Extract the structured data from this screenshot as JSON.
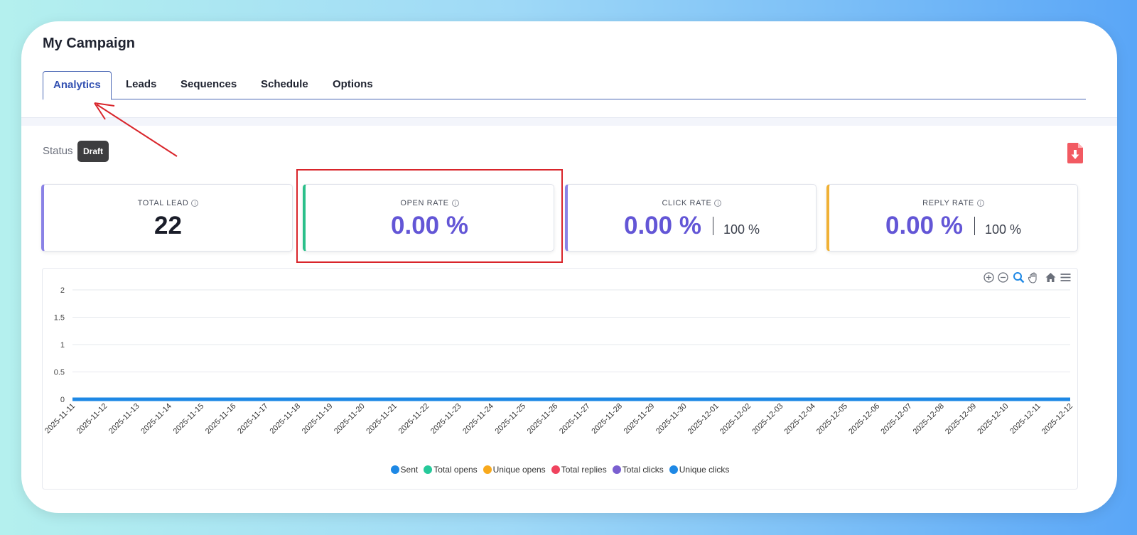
{
  "title": "My Campaign",
  "tabs": [
    {
      "label": "Analytics",
      "active": true
    },
    {
      "label": "Leads"
    },
    {
      "label": "Sequences"
    },
    {
      "label": "Schedule"
    },
    {
      "label": "Options"
    }
  ],
  "status": {
    "label": "Status",
    "value": "Draft"
  },
  "stats": [
    {
      "label": "TOTAL LEAD",
      "value": "22",
      "color": "#1a1d29",
      "accent": "#8a82e6"
    },
    {
      "label": "OPEN RATE",
      "value": "0.00 %",
      "color": "#6356d6",
      "accent": "#2bbf8a"
    },
    {
      "label": "CLICK RATE",
      "value": "0.00 %",
      "sub": "100 %",
      "color": "#6356d6",
      "accent": "#8a82e6"
    },
    {
      "label": "REPLY RATE",
      "value": "0.00 %",
      "sub": "100 %",
      "color": "#6356d6",
      "accent": "#f0b135"
    }
  ],
  "chart_data": {
    "type": "line",
    "categories": [
      "2025-11-11",
      "2025-11-12",
      "2025-11-13",
      "2025-11-14",
      "2025-11-15",
      "2025-11-16",
      "2025-11-17",
      "2025-11-18",
      "2025-11-19",
      "2025-11-20",
      "2025-11-21",
      "2025-11-22",
      "2025-11-23",
      "2025-11-24",
      "2025-11-25",
      "2025-11-26",
      "2025-11-27",
      "2025-11-28",
      "2025-11-29",
      "2025-11-30",
      "2025-12-01",
      "2025-12-02",
      "2025-12-03",
      "2025-12-04",
      "2025-12-05",
      "2025-12-06",
      "2025-12-07",
      "2025-12-08",
      "2025-12-09",
      "2025-12-10",
      "2025-12-11",
      "2025-12-12"
    ],
    "yticks": [
      "0",
      "0.5",
      "1",
      "1.5",
      "2"
    ],
    "ylim": [
      0,
      2
    ],
    "grid": true,
    "legend_position": "bottom",
    "series": [
      {
        "name": "Sent",
        "color": "#1e88e5",
        "values": [
          0,
          0,
          0,
          0,
          0,
          0,
          0,
          0,
          0,
          0,
          0,
          0,
          0,
          0,
          0,
          0,
          0,
          0,
          0,
          0,
          0,
          0,
          0,
          0,
          0,
          0,
          0,
          0,
          0,
          0,
          0,
          0
        ]
      },
      {
        "name": "Total opens",
        "color": "#26c99a",
        "values": [
          0,
          0,
          0,
          0,
          0,
          0,
          0,
          0,
          0,
          0,
          0,
          0,
          0,
          0,
          0,
          0,
          0,
          0,
          0,
          0,
          0,
          0,
          0,
          0,
          0,
          0,
          0,
          0,
          0,
          0,
          0,
          0
        ]
      },
      {
        "name": "Unique opens",
        "color": "#f8a91c",
        "values": [
          0,
          0,
          0,
          0,
          0,
          0,
          0,
          0,
          0,
          0,
          0,
          0,
          0,
          0,
          0,
          0,
          0,
          0,
          0,
          0,
          0,
          0,
          0,
          0,
          0,
          0,
          0,
          0,
          0,
          0,
          0,
          0
        ]
      },
      {
        "name": "Total replies",
        "color": "#f0435e",
        "values": [
          0,
          0,
          0,
          0,
          0,
          0,
          0,
          0,
          0,
          0,
          0,
          0,
          0,
          0,
          0,
          0,
          0,
          0,
          0,
          0,
          0,
          0,
          0,
          0,
          0,
          0,
          0,
          0,
          0,
          0,
          0,
          0
        ]
      },
      {
        "name": "Total clicks",
        "color": "#7a5fd0",
        "values": [
          0,
          0,
          0,
          0,
          0,
          0,
          0,
          0,
          0,
          0,
          0,
          0,
          0,
          0,
          0,
          0,
          0,
          0,
          0,
          0,
          0,
          0,
          0,
          0,
          0,
          0,
          0,
          0,
          0,
          0,
          0,
          0
        ]
      },
      {
        "name": "Unique clicks",
        "color": "#1e88e5",
        "values": [
          0,
          0,
          0,
          0,
          0,
          0,
          0,
          0,
          0,
          0,
          0,
          0,
          0,
          0,
          0,
          0,
          0,
          0,
          0,
          0,
          0,
          0,
          0,
          0,
          0,
          0,
          0,
          0,
          0,
          0,
          0,
          0
        ]
      }
    ]
  },
  "toolbar_icons": [
    "zoom-in-icon",
    "zoom-out-icon",
    "zoom-selection-icon",
    "pan-icon",
    "reset-home-icon",
    "menu-icon"
  ]
}
